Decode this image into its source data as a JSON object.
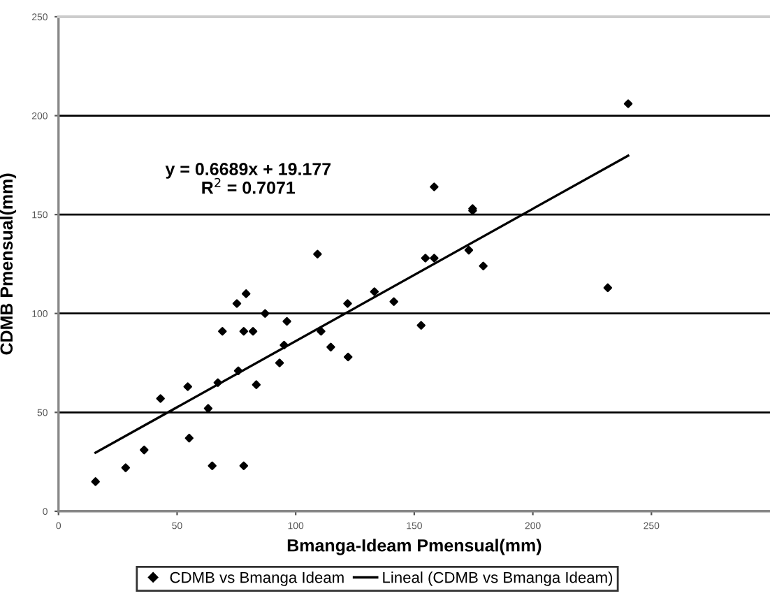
{
  "chart_data": {
    "type": "scatter",
    "xlabel": "Bmanga-Ideam Pmensual(mm)",
    "ylabel": "CDMB Pmensual(mm)",
    "xlim": [
      0,
      300
    ],
    "xticks": [
      0,
      50,
      100,
      150,
      200,
      250
    ],
    "ylim": [
      0,
      250
    ],
    "yticks": [
      0,
      50,
      100,
      150,
      200,
      250
    ],
    "grid": "y",
    "legend": "bottom",
    "marker": "diamond",
    "annotations": [
      "y = 0.6689x + 19.177\nR$^{2}$ = 0.7071"
    ],
    "series": [
      {
        "name": "CDMB vs Bmanga Ideam",
        "color": "#000000",
        "x": [
          15.6,
          28.3,
          36.1,
          43,
          54.5,
          55.1,
          63.1,
          64.8,
          67.2,
          69.1,
          75.8,
          75.2,
          78.1,
          78.1,
          79.1,
          82,
          83.4,
          87.1,
          93.2,
          95.1,
          96.3,
          109.2,
          110.7,
          114.8,
          121.9,
          122.1,
          133.2,
          141.4,
          152.9,
          154.7,
          158.4,
          158.4,
          173,
          174.6,
          174.6,
          179.1,
          231.6,
          240.2
        ],
        "values": [
          15,
          22,
          31,
          57,
          63,
          37,
          52,
          23,
          65,
          91,
          71,
          105,
          23,
          91,
          110,
          91,
          64,
          100,
          75,
          84,
          96,
          130,
          91,
          83,
          105,
          78,
          111,
          106,
          94,
          128,
          128,
          164,
          132,
          153,
          152,
          124,
          113,
          206
        ]
      },
      {
        "name": "Lineal (CDMB vs Bmanga Ideam)",
        "color": "#000000",
        "type": "line",
        "line_style": "solid",
        "marker": "none",
        "x": [
          15.6,
          240.2
        ],
        "values": [
          29.6,
          179.8
        ]
      }
    ]
  }
}
